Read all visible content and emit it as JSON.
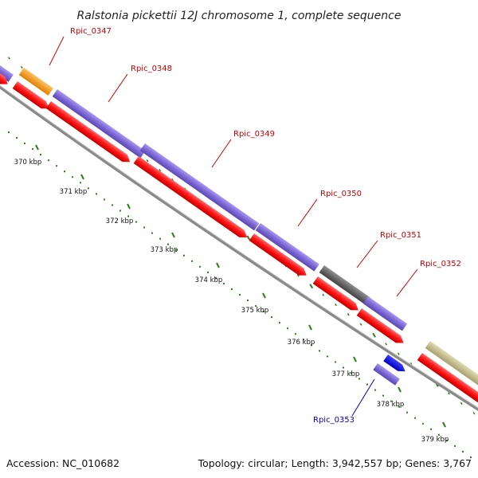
{
  "title": "Ralstonia pickettii 12J chromosome 1, complete sequence",
  "accession": "Accession: NC_010682",
  "topology": "Topology: circular; Length: 3,942,557 bp; Genes: 3,767",
  "colors": {
    "backbone": "#8a8a8a",
    "tick": "#2e7d1f",
    "cds": "#ff1a1a",
    "rna_like": "#7b68d6",
    "orange_feature": "#ff9a1a",
    "gray_feature": "#6a6a6a",
    "olive_feature": "#c8c08a",
    "blue_feature": "#1010ff",
    "label_red": "#cc0000",
    "label_blue": "#0000cc"
  },
  "ticks": [
    "370 kbp",
    "371 kbp",
    "372 kbp",
    "373 kbp",
    "374 kbp",
    "375 kbp",
    "376 kbp",
    "377 kbp",
    "378 kbp",
    "379 kbp"
  ],
  "gene_labels": [
    {
      "name": "Rpic_0347",
      "color": "#cc0000"
    },
    {
      "name": "Rpic_0348",
      "color": "#cc0000"
    },
    {
      "name": "Rpic_0349",
      "color": "#cc0000"
    },
    {
      "name": "Rpic_0350",
      "color": "#cc0000"
    },
    {
      "name": "Rpic_0351",
      "color": "#cc0000"
    },
    {
      "name": "Rpic_0352",
      "color": "#cc0000"
    },
    {
      "name": "Rpic_0353",
      "color": "#0000cc"
    }
  ]
}
